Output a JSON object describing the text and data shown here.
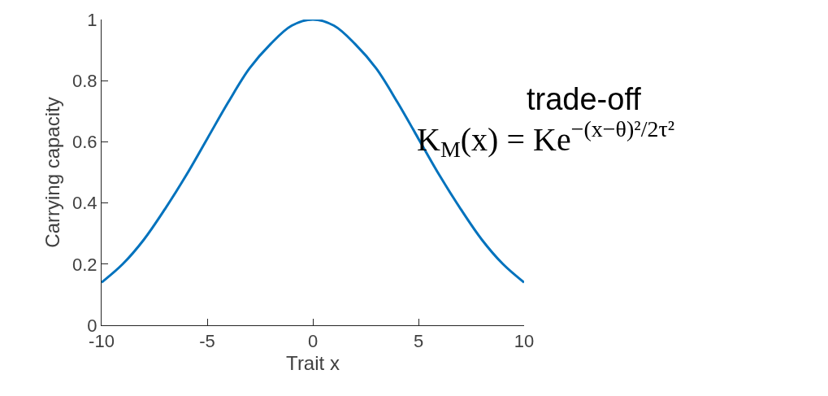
{
  "chart_data": {
    "type": "line",
    "xlabel": "Trait x",
    "ylabel": "Carrying capacity",
    "x": [
      -10,
      -9,
      -8,
      -7,
      -6,
      -5,
      -4,
      -3,
      -2,
      -1,
      0,
      1,
      2,
      3,
      4,
      5,
      6,
      7,
      8,
      9,
      10
    ],
    "series": [
      {
        "color": "#0072bd",
        "values": [
          0.14,
          0.2,
          0.28,
          0.38,
          0.49,
          0.61,
          0.73,
          0.84,
          0.92,
          0.98,
          1,
          0.98,
          0.92,
          0.84,
          0.73,
          0.61,
          0.49,
          0.38,
          0.28,
          0.2,
          0.14
        ]
      }
    ],
    "xlim": [
      -10,
      10
    ],
    "ylim": [
      0,
      1
    ],
    "xticks": [
      -10,
      -5,
      0,
      5,
      10
    ],
    "yticks": [
      0,
      0.2,
      0.4,
      0.6,
      0.8,
      1
    ],
    "marker": "none",
    "line_style": "solid",
    "annotations": [
      "trade-off",
      "K$_{M}$(x) = Ke$^{−(x−θ)²/2τ²}$"
    ]
  }
}
